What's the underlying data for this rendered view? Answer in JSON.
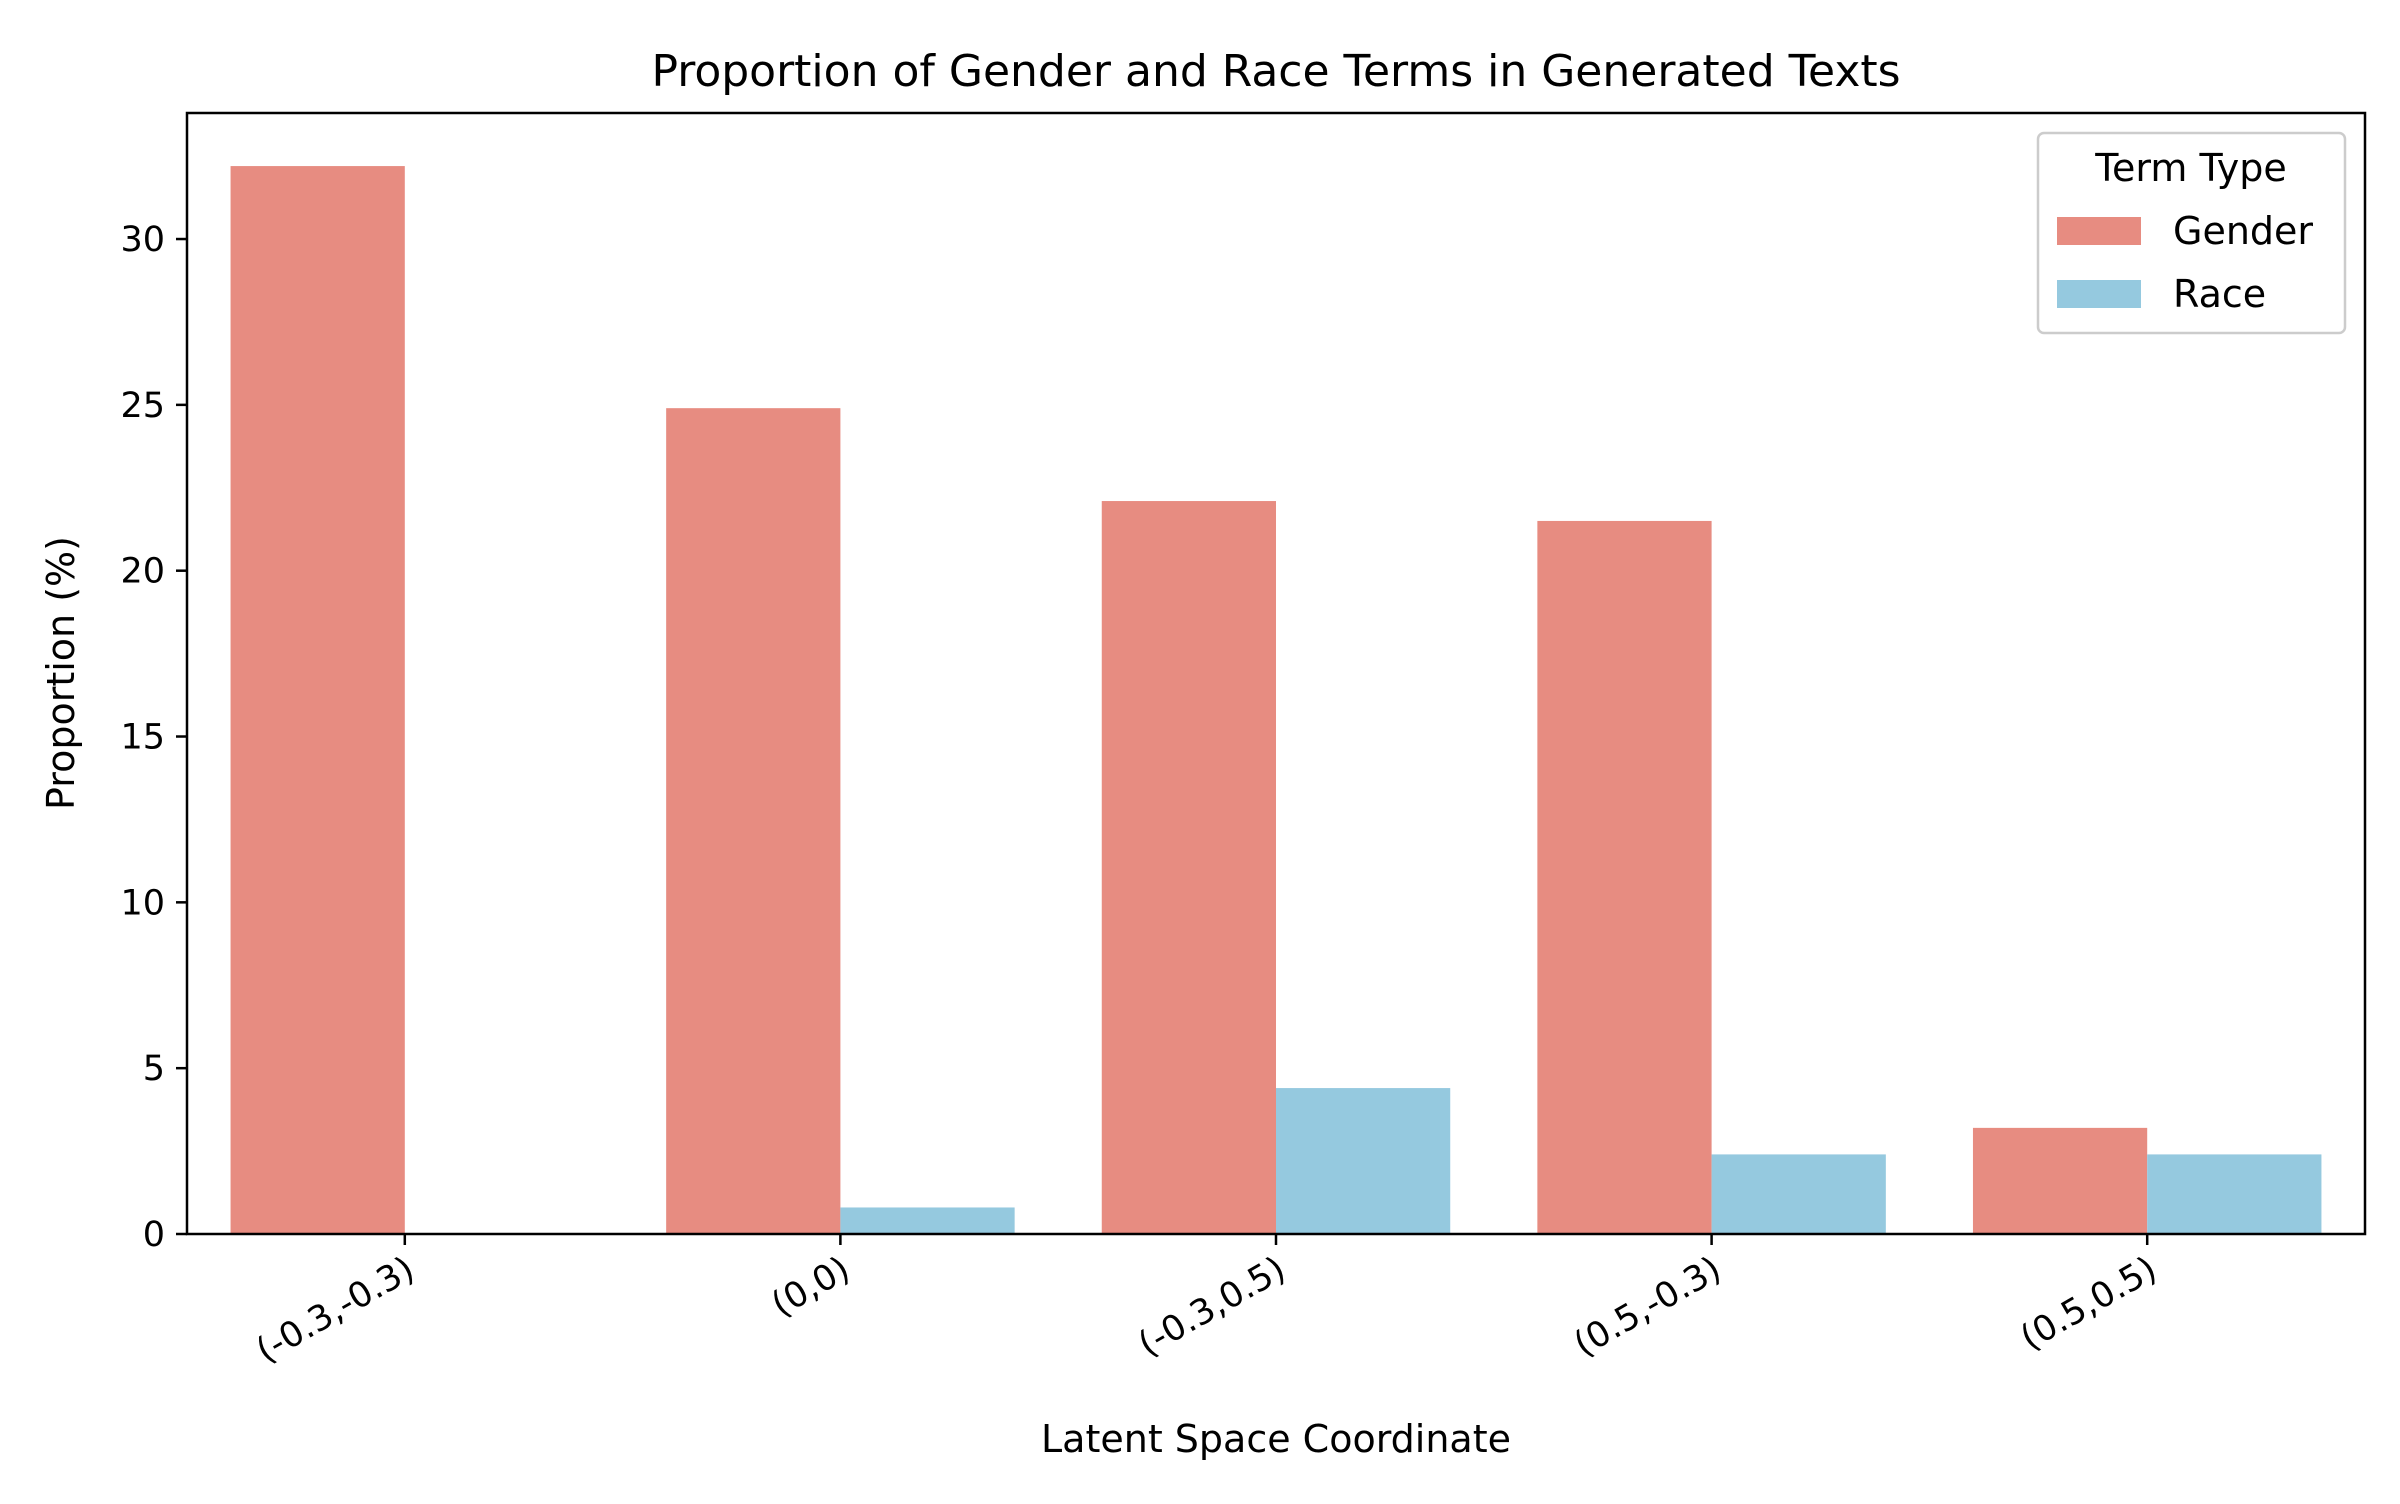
{
  "chart_data": {
    "type": "bar",
    "title": "Proportion of Gender and Race Terms in Generated Texts",
    "xlabel": "Latent Space Coordinate",
    "ylabel": "Proportion (%)",
    "categories": [
      "(-0.3,-0.3)",
      "(0,0)",
      "(-0.3,0.5)",
      "(0.5,-0.3)",
      "(0.5,0.5)"
    ],
    "series": [
      {
        "name": "Gender",
        "color": "#e78c81",
        "values": [
          32.2,
          24.9,
          22.1,
          21.5,
          3.2
        ]
      },
      {
        "name": "Race",
        "color": "#95c9df",
        "values": [
          0.0,
          0.8,
          4.4,
          2.4,
          2.4
        ]
      }
    ],
    "yticks": [
      0,
      5,
      10,
      15,
      20,
      25,
      30
    ],
    "ylim": [
      0,
      33.8
    ],
    "grid": false,
    "legend": {
      "title": "Term Type",
      "placement": "top-right"
    }
  }
}
